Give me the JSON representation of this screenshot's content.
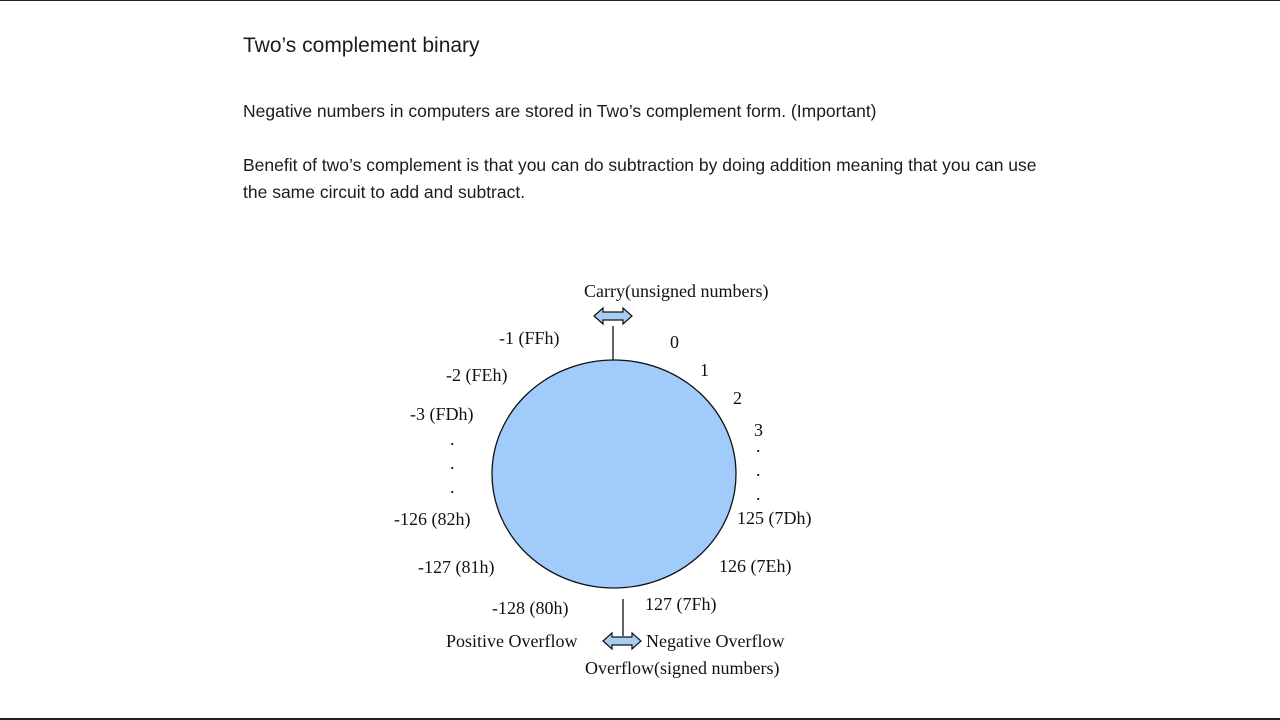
{
  "document": {
    "title": "Two’s complement binary",
    "paragraphs": [
      "Negative numbers in computers are stored in Two’s complement form. (Important)",
      "Benefit of two’s complement is that you can do subtraction by doing addition meaning that you can use the same circuit to add and subtract."
    ]
  },
  "diagram": {
    "circle_color": "#a0cbfa",
    "arrow_color": "#a8cdf3",
    "carry_label": "Carry(unsigned numbers)",
    "overflow_label": "Overflow(signed numbers)",
    "positive_overflow_label": "Positive Overflow",
    "negative_overflow_label": "Negative Overflow",
    "left_labels": [
      "-1 (FFh)",
      "-2 (FEh)",
      "-3 (FDh)",
      "-126 (82h)",
      "-127 (81h)",
      "-128 (80h)"
    ],
    "right_labels": [
      "0",
      "1",
      "2",
      "3",
      "125 (7Dh)",
      "126 (7Eh)",
      "127 (7Fh)"
    ],
    "ellipsis_dot": "."
  }
}
